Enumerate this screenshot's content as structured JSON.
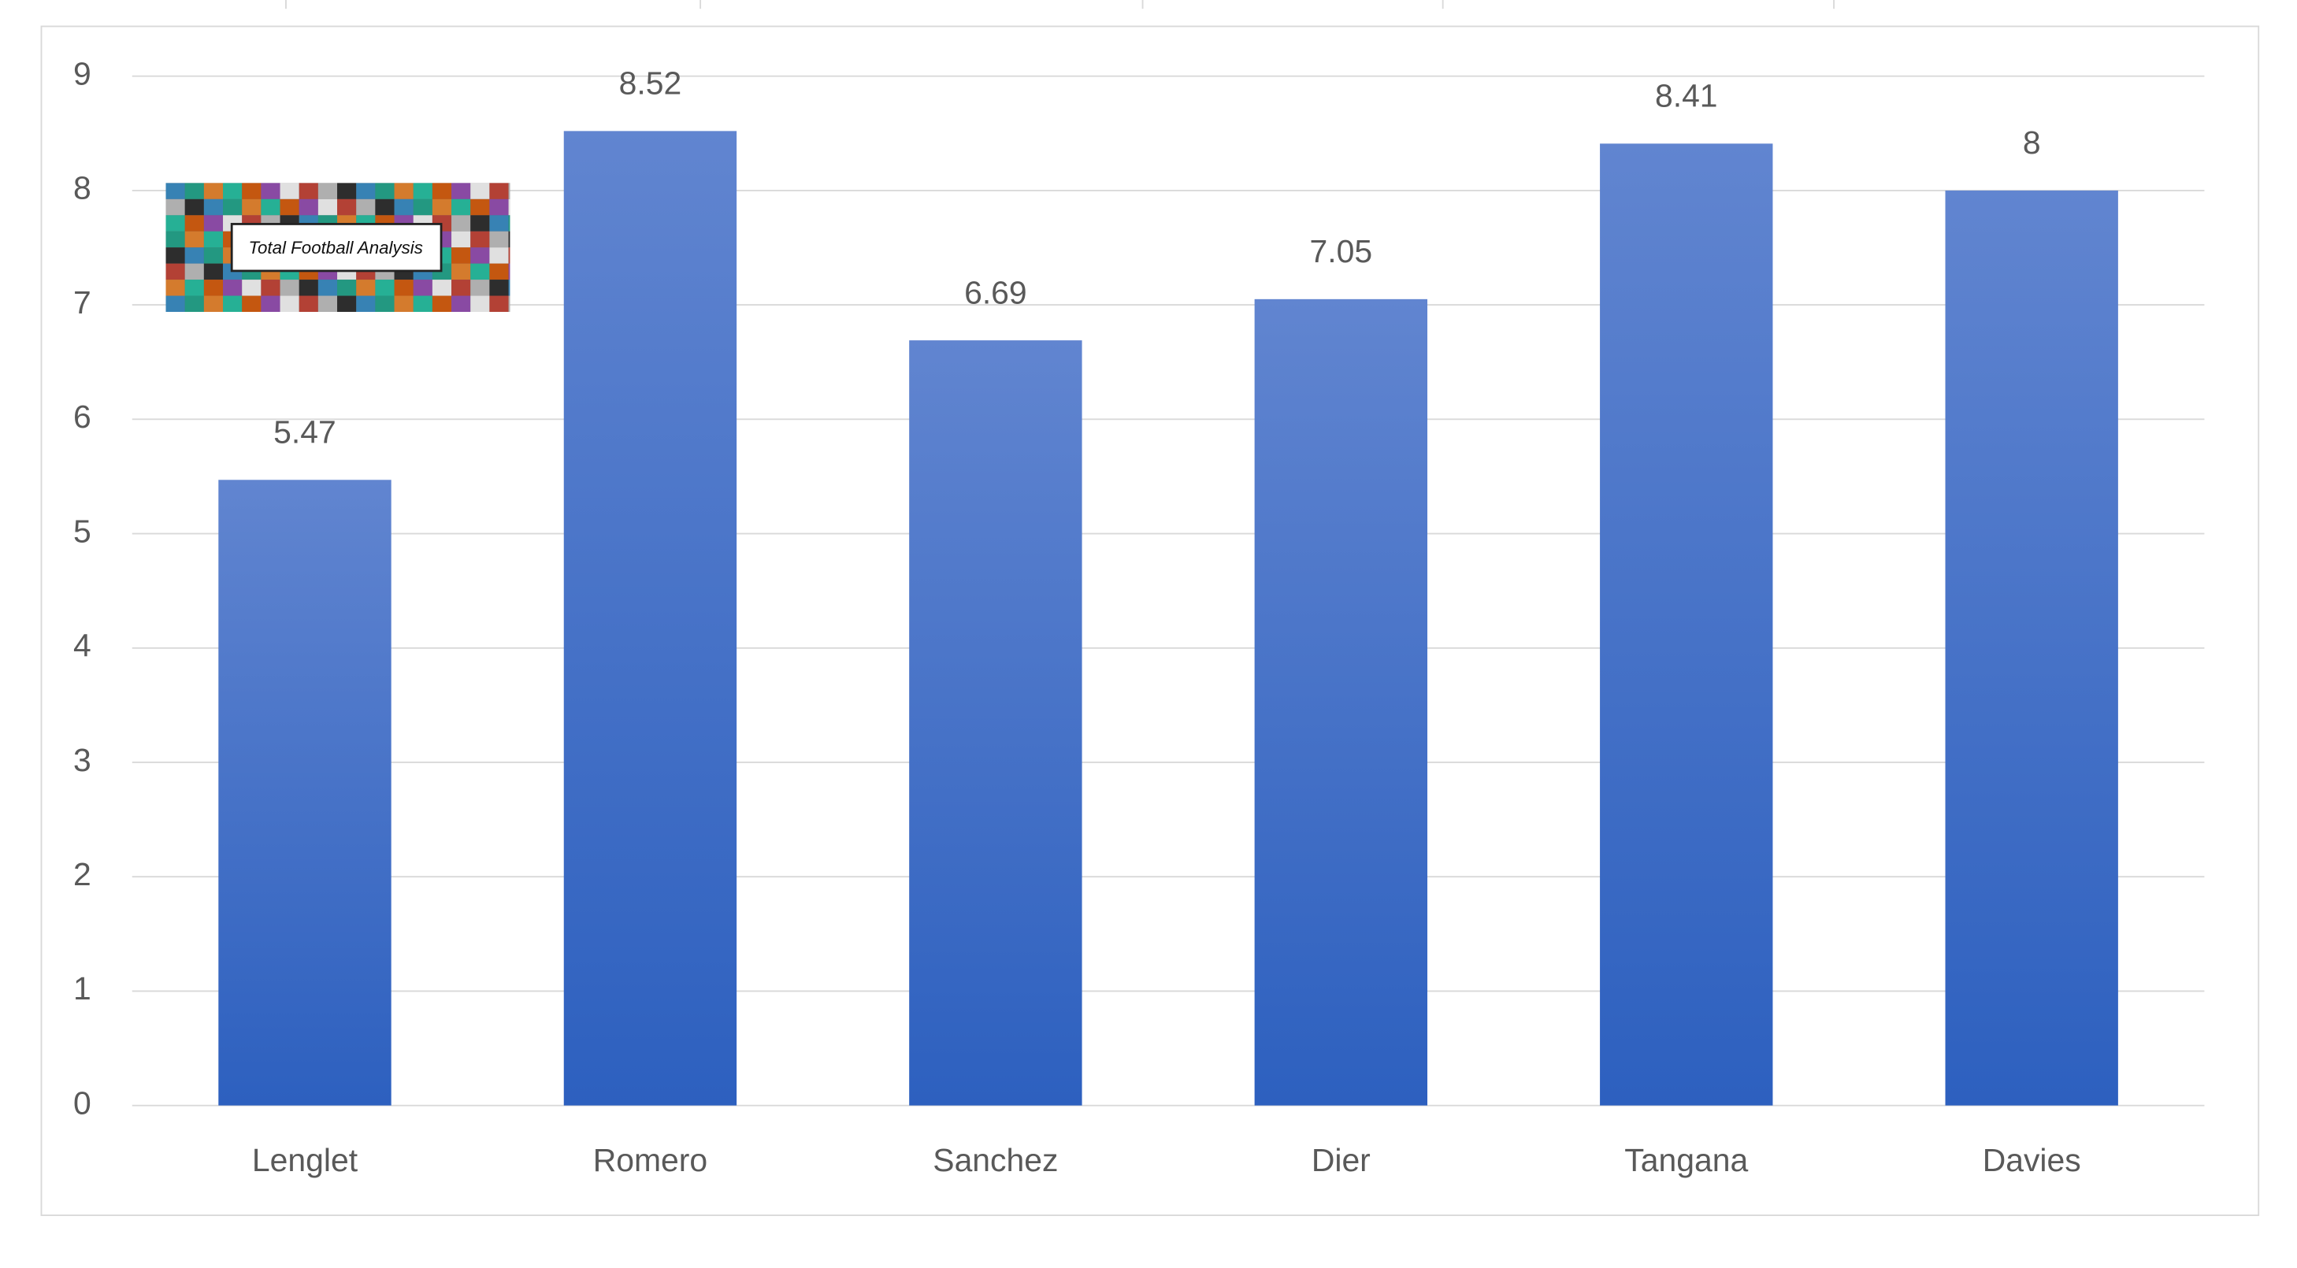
{
  "chart_data": {
    "type": "bar",
    "categories": [
      "Lenglet",
      "Romero",
      "Sanchez",
      "Dier",
      "Tangana",
      "Davies"
    ],
    "values": [
      5.47,
      8.52,
      6.69,
      7.05,
      8.41,
      8
    ],
    "color": "#4472c4",
    "ylim": [
      0,
      9
    ],
    "yticks": [
      0,
      1,
      2,
      3,
      4,
      5,
      6,
      7,
      8,
      9
    ],
    "grid": true,
    "watermark": "Total Football Analysis"
  }
}
